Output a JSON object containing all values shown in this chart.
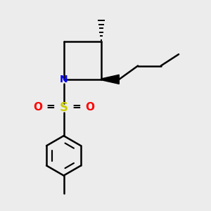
{
  "bg_color": "#ececec",
  "line_color": "#000000",
  "N_color": "#0000ee",
  "S_color": "#cccc00",
  "O_color": "#ff0000",
  "line_width": 1.8,
  "fig_size": [
    3.0,
    3.0
  ],
  "dpi": 100,
  "xlim": [
    0,
    10
  ],
  "ylim": [
    0,
    10
  ]
}
